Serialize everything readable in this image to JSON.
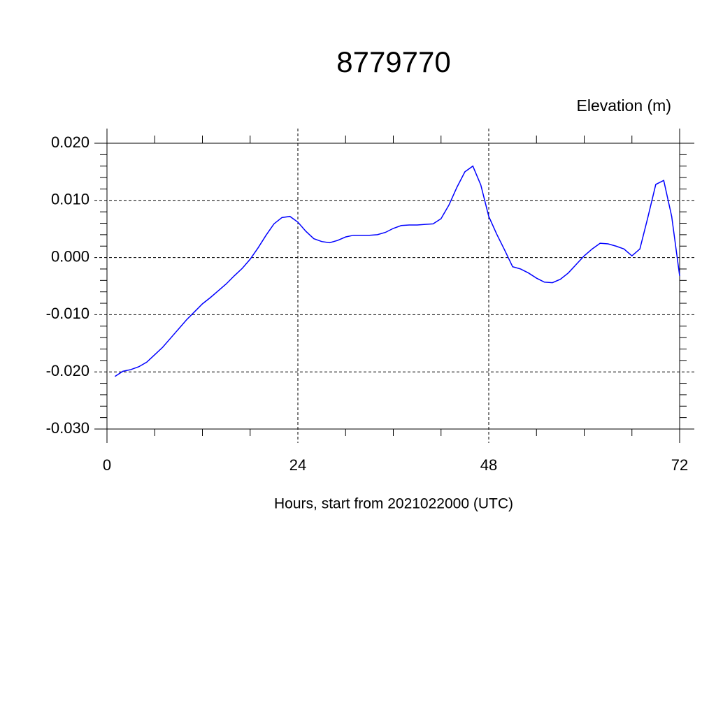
{
  "chart_data": {
    "type": "line",
    "title": "8779770",
    "ylabel": "Elevation (m)",
    "xlabel": "Hours, start from 2021022000 (UTC)",
    "x": [
      1,
      2,
      3,
      4,
      5,
      6,
      7,
      8,
      9,
      10,
      11,
      12,
      13,
      14,
      15,
      16,
      17,
      18,
      19,
      20,
      21,
      22,
      23,
      24,
      25,
      26,
      27,
      28,
      29,
      30,
      31,
      32,
      33,
      34,
      35,
      36,
      37,
      38,
      39,
      40,
      41,
      42,
      43,
      44,
      45,
      46,
      47,
      48,
      49,
      50,
      51,
      52,
      53,
      54,
      55,
      56,
      57,
      58,
      59,
      60,
      61,
      62,
      63,
      64,
      65,
      66,
      67,
      68,
      69,
      70,
      71,
      72
    ],
    "series": [
      {
        "name": "Elevation",
        "color": "#0000ff",
        "values": [
          -0.0208,
          -0.0199,
          -0.0196,
          -0.0191,
          -0.0183,
          -0.017,
          -0.0157,
          -0.0141,
          -0.0125,
          -0.0109,
          -0.0095,
          -0.0081,
          -0.007,
          -0.0058,
          -0.0046,
          -0.0032,
          -0.0019,
          -0.0003,
          0.0017,
          0.0039,
          0.0059,
          0.007,
          0.0072,
          0.0062,
          0.0046,
          0.0033,
          0.0028,
          0.0026,
          0.003,
          0.0036,
          0.0039,
          0.0039,
          0.0039,
          0.004,
          0.0044,
          0.0051,
          0.0056,
          0.0057,
          0.0057,
          0.0058,
          0.0059,
          0.0068,
          0.0092,
          0.0123,
          0.015,
          0.016,
          0.0127,
          0.0072,
          0.0041,
          0.0013,
          -0.0016,
          -0.002,
          -0.0027,
          -0.0036,
          -0.0043,
          -0.0044,
          -0.0038,
          -0.0027,
          -0.0012,
          0.0003,
          0.0015,
          0.0025,
          0.0024,
          0.002,
          0.0015,
          0.0003,
          0.0015,
          0.007,
          0.0128,
          0.0135,
          0.0072,
          -0.0032
        ]
      }
    ],
    "xlim": [
      0,
      72
    ],
    "xticks": [
      0,
      24,
      48,
      72
    ],
    "ylim": [
      -0.03,
      0.02
    ],
    "yticks": [
      {
        "value": -0.03,
        "label": "-0.030"
      },
      {
        "value": -0.02,
        "label": "-0.020"
      },
      {
        "value": -0.01,
        "label": "-0.010"
      },
      {
        "value": 0,
        "label": "0.000"
      },
      {
        "value": 0.01,
        "label": "0.010"
      },
      {
        "value": 0.02,
        "label": "0.020"
      }
    ],
    "grid": true
  }
}
